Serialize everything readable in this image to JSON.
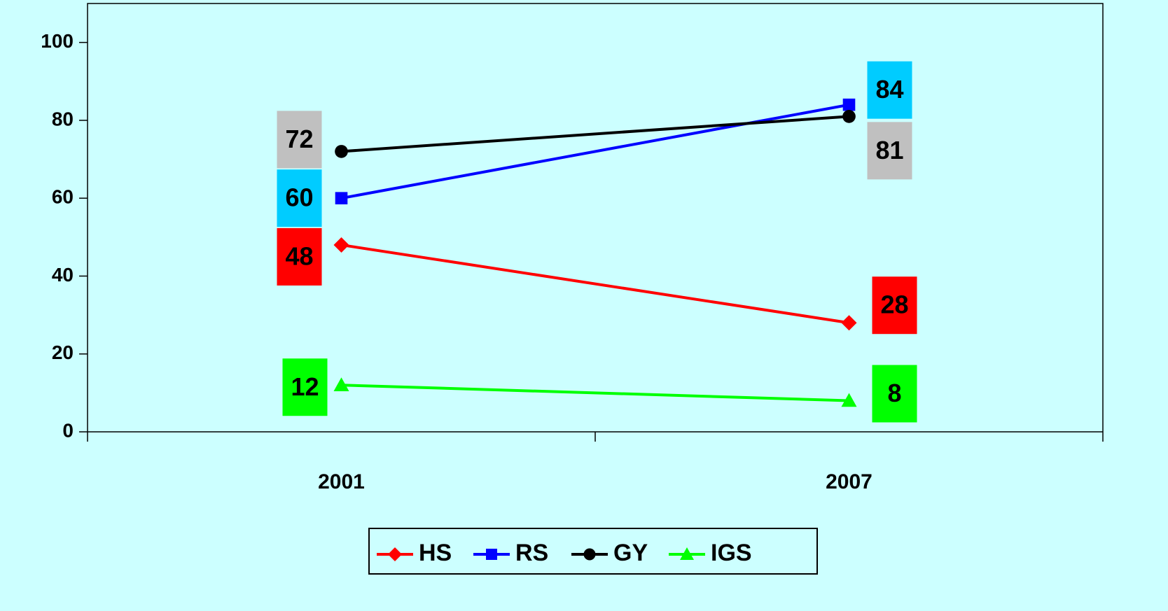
{
  "chart_data": {
    "type": "line",
    "categories": [
      "2001",
      "2007"
    ],
    "series": [
      {
        "name": "HS",
        "color": "#ff0000",
        "marker": "diamond",
        "label_color": "#ff0000",
        "values": [
          48,
          28
        ]
      },
      {
        "name": "RS",
        "color": "#0000ff",
        "marker": "square",
        "label_color": "#00ccff",
        "values": [
          60,
          84
        ]
      },
      {
        "name": "GY",
        "color": "#000000",
        "marker": "circle",
        "label_color": "#c0c0c0",
        "values": [
          72,
          81
        ]
      },
      {
        "name": "IGS",
        "color": "#00ff00",
        "marker": "triangle",
        "label_color": "#00ff00",
        "values": [
          12,
          8
        ]
      }
    ],
    "ylim": [
      0,
      110
    ],
    "yticks": [
      0,
      20,
      40,
      60,
      80,
      100
    ],
    "grid": false,
    "legend": "bottom"
  }
}
